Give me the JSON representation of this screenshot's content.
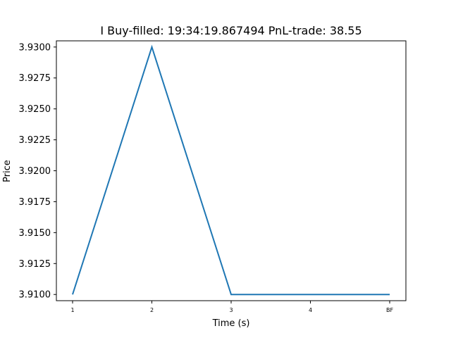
{
  "chart_data": {
    "type": "line",
    "title": "I  Buy-filled:  19:34:19.867494  PnL-trade:  38.55",
    "xlabel": "Time (s)",
    "ylabel": "Price",
    "categories": [
      "1",
      "2",
      "3",
      "4",
      "BF"
    ],
    "series": [
      {
        "values": [
          3.91,
          3.93,
          3.91,
          3.91,
          3.91
        ],
        "color": "#1f77b4"
      }
    ],
    "ylim": [
      3.9095,
      3.9305
    ],
    "yticks": [
      "3.9100",
      "3.9125",
      "3.9150",
      "3.9175",
      "3.9200",
      "3.9225",
      "3.9250",
      "3.9275",
      "3.9300"
    ],
    "grid": false,
    "legend": "none"
  }
}
